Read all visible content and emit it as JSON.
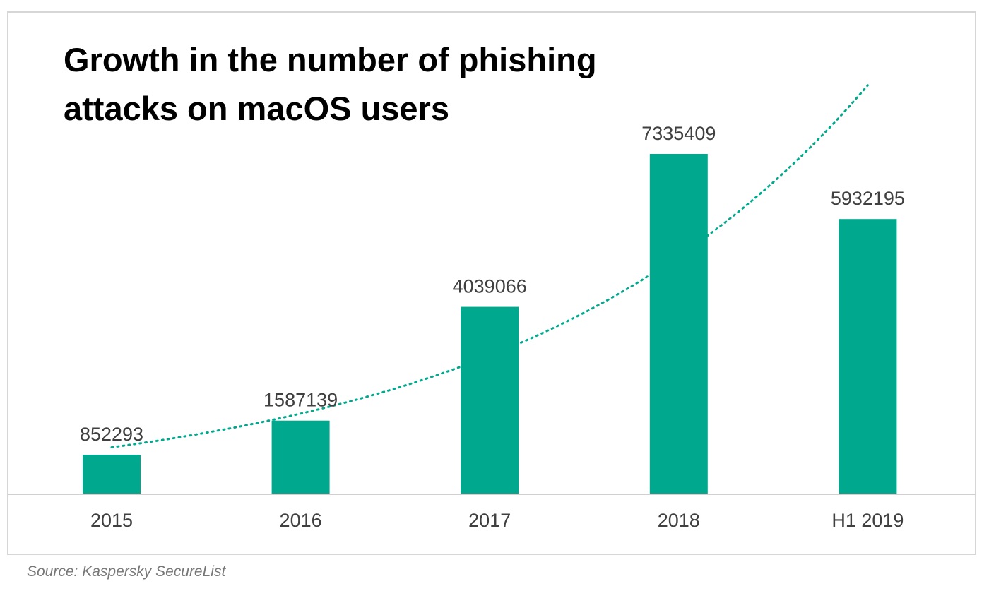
{
  "colors": {
    "bar": "#00a88e",
    "trend": "#00a88e",
    "axis": "#d0d0d0",
    "label": "#404040"
  },
  "chart_data": {
    "type": "bar",
    "title": "Growth in the number of phishing attacks on macOS users",
    "xlabel": "",
    "ylabel": "",
    "categories": [
      "2015",
      "2016",
      "2017",
      "2018",
      "H1 2019"
    ],
    "series": [
      {
        "values": [
          852293,
          1587139,
          4039066,
          7335409,
          5932195
        ]
      }
    ],
    "data_labels": [
      "852293",
      "1587139",
      "4039066",
      "7335409",
      "5932195"
    ],
    "trendline": {
      "type": "exponential",
      "style": "dotted"
    },
    "grid": false,
    "legend": "none"
  },
  "source": "Source: Kaspersky SecureList"
}
